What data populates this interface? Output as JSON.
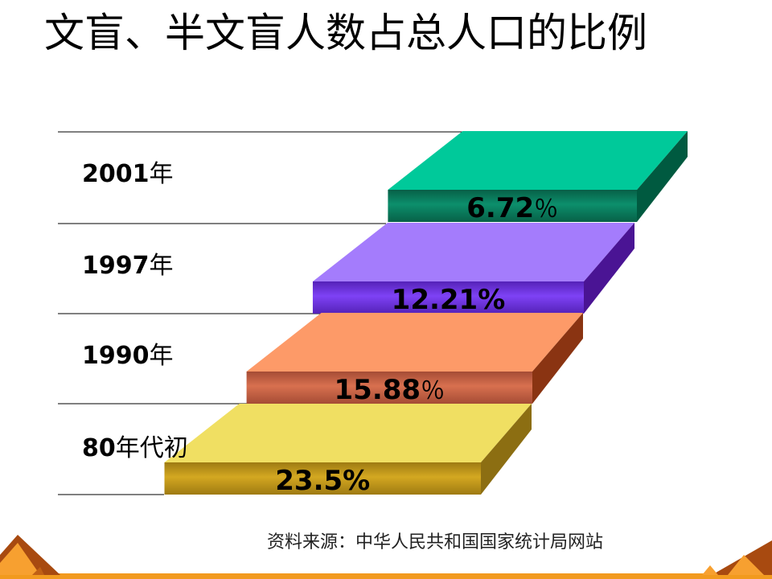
{
  "page": {
    "title": "文盲、半文盲人数占总人口的比例",
    "source": "资料来源：中华人民共和国国家统计局网站"
  },
  "chart_data": {
    "type": "bar",
    "title": "文盲、半文盲人数占总人口的比例",
    "orientation": "horizontal-3d-steps",
    "categories": [
      {
        "num": "2001",
        "suffix": "年"
      },
      {
        "num": "1997",
        "suffix": "年"
      },
      {
        "num": "1990",
        "suffix": "年"
      },
      {
        "num": "80",
        "suffix": "年代初"
      }
    ],
    "values": [
      6.72,
      12.21,
      15.88,
      23.5
    ],
    "unit": "%",
    "data_labels": [
      {
        "num": "6.72",
        "pct": "％",
        "thin": true
      },
      {
        "num": "12.21",
        "pct": "%",
        "thin": false
      },
      {
        "num": "15.88",
        "pct": "％",
        "thin": true
      },
      {
        "num": "23.5",
        "pct": "%",
        "thin": false
      }
    ],
    "colors": [
      {
        "top": "#00c99a",
        "front": "#0c8f6c",
        "frontDark": "#076047",
        "side": "#005a40"
      },
      {
        "top": "#a47cfc",
        "front": "#7e42f5",
        "frontDark": "#5522b8",
        "side": "#4a1494"
      },
      {
        "top": "#fd9a68",
        "front": "#d8704f",
        "frontDark": "#a54c35",
        "side": "#8a3412"
      },
      {
        "top": "#f0df62",
        "front": "#d4a821",
        "frontDark": "#9e7a12",
        "side": "#8c6e12"
      }
    ]
  }
}
